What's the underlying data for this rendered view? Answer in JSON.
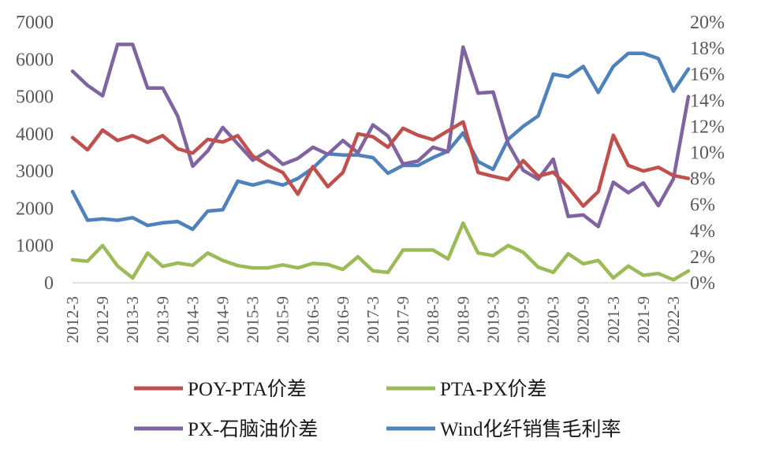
{
  "chart_data": {
    "type": "line",
    "x": [
      "2012-3",
      "2012-6",
      "2012-9",
      "2012-12",
      "2013-3",
      "2013-6",
      "2013-9",
      "2013-12",
      "2014-3",
      "2014-6",
      "2014-9",
      "2014-12",
      "2015-3",
      "2015-6",
      "2015-9",
      "2015-12",
      "2016-3",
      "2016-6",
      "2016-9",
      "2016-12",
      "2017-3",
      "2017-6",
      "2017-9",
      "2017-12",
      "2018-3",
      "2018-6",
      "2018-9",
      "2018-12",
      "2019-3",
      "2019-6",
      "2019-9",
      "2019-12",
      "2020-3",
      "2020-6",
      "2020-9",
      "2020-12",
      "2021-3",
      "2021-6",
      "2021-9",
      "2021-12",
      "2022-3",
      "2022-6"
    ],
    "x_tick_labels": [
      "2012-3",
      "2012-9",
      "2013-3",
      "2013-9",
      "2014-3",
      "2014-9",
      "2015-3",
      "2015-9",
      "2016-3",
      "2016-9",
      "2017-3",
      "2017-9",
      "2018-3",
      "2018-9",
      "2019-3",
      "2019-9",
      "2020-3",
      "2020-9",
      "2021-3",
      "2021-9",
      "2022-3"
    ],
    "y_left": {
      "ylim": [
        0,
        7000
      ],
      "ticks": [
        "0",
        "1000",
        "2000",
        "3000",
        "4000",
        "5000",
        "6000",
        "7000"
      ]
    },
    "y_right": {
      "ylim": [
        0,
        20
      ],
      "unit": "%",
      "ticks": [
        "0%",
        "2%",
        "4%",
        "6%",
        "8%",
        "10%",
        "12%",
        "14%",
        "16%",
        "18%",
        "20%"
      ]
    },
    "grid": false,
    "legend_position": "bottom",
    "series": [
      {
        "name": "POY-PTA价差",
        "axis": "left",
        "color": "#c0504d",
        "values": [
          3900,
          3570,
          4100,
          3820,
          3950,
          3770,
          3950,
          3600,
          3480,
          3850,
          3780,
          3950,
          3400,
          3150,
          2960,
          2380,
          3120,
          2580,
          2960,
          4000,
          3920,
          3640,
          4150,
          3960,
          3840,
          4080,
          4320,
          2960,
          2860,
          2770,
          3280,
          2860,
          2970,
          2560,
          2060,
          2450,
          3960,
          3150,
          3000,
          3100,
          2880,
          2800
        ]
      },
      {
        "name": "PTA-PX价差",
        "axis": "left",
        "color": "#9bbb59",
        "values": [
          620,
          580,
          1000,
          450,
          130,
          800,
          440,
          530,
          470,
          800,
          600,
          460,
          400,
          400,
          480,
          400,
          520,
          490,
          360,
          700,
          320,
          280,
          880,
          880,
          880,
          640,
          1600,
          800,
          730,
          1000,
          820,
          420,
          280,
          780,
          510,
          600,
          130,
          450,
          200,
          250,
          80,
          320
        ]
      },
      {
        "name": "PX-石脑油价差",
        "axis": "left",
        "color": "#8064a2",
        "values": [
          5680,
          5300,
          5020,
          6400,
          6400,
          5230,
          5230,
          4480,
          3130,
          3540,
          4170,
          3730,
          3290,
          3540,
          3180,
          3340,
          3640,
          3450,
          3820,
          3490,
          4240,
          3940,
          3190,
          3270,
          3640,
          3520,
          6330,
          5090,
          5120,
          3740,
          3020,
          2780,
          3320,
          1780,
          1820,
          1510,
          2700,
          2420,
          2680,
          2070,
          2790,
          5000
        ]
      },
      {
        "name": "Wind化纤销售毛利率",
        "axis": "right",
        "color": "#4f81bd",
        "values": [
          7.0,
          4.8,
          4.9,
          4.8,
          5.0,
          4.4,
          4.6,
          4.7,
          4.1,
          5.5,
          5.6,
          7.8,
          7.5,
          7.8,
          7.5,
          8.0,
          8.8,
          9.9,
          9.8,
          9.8,
          9.6,
          8.4,
          9.0,
          9.0,
          9.6,
          10.1,
          11.5,
          9.3,
          8.7,
          11.0,
          12.0,
          12.8,
          16.0,
          15.8,
          16.6,
          14.6,
          16.6,
          17.6,
          17.6,
          17.2,
          14.7,
          16.4
        ]
      }
    ]
  }
}
